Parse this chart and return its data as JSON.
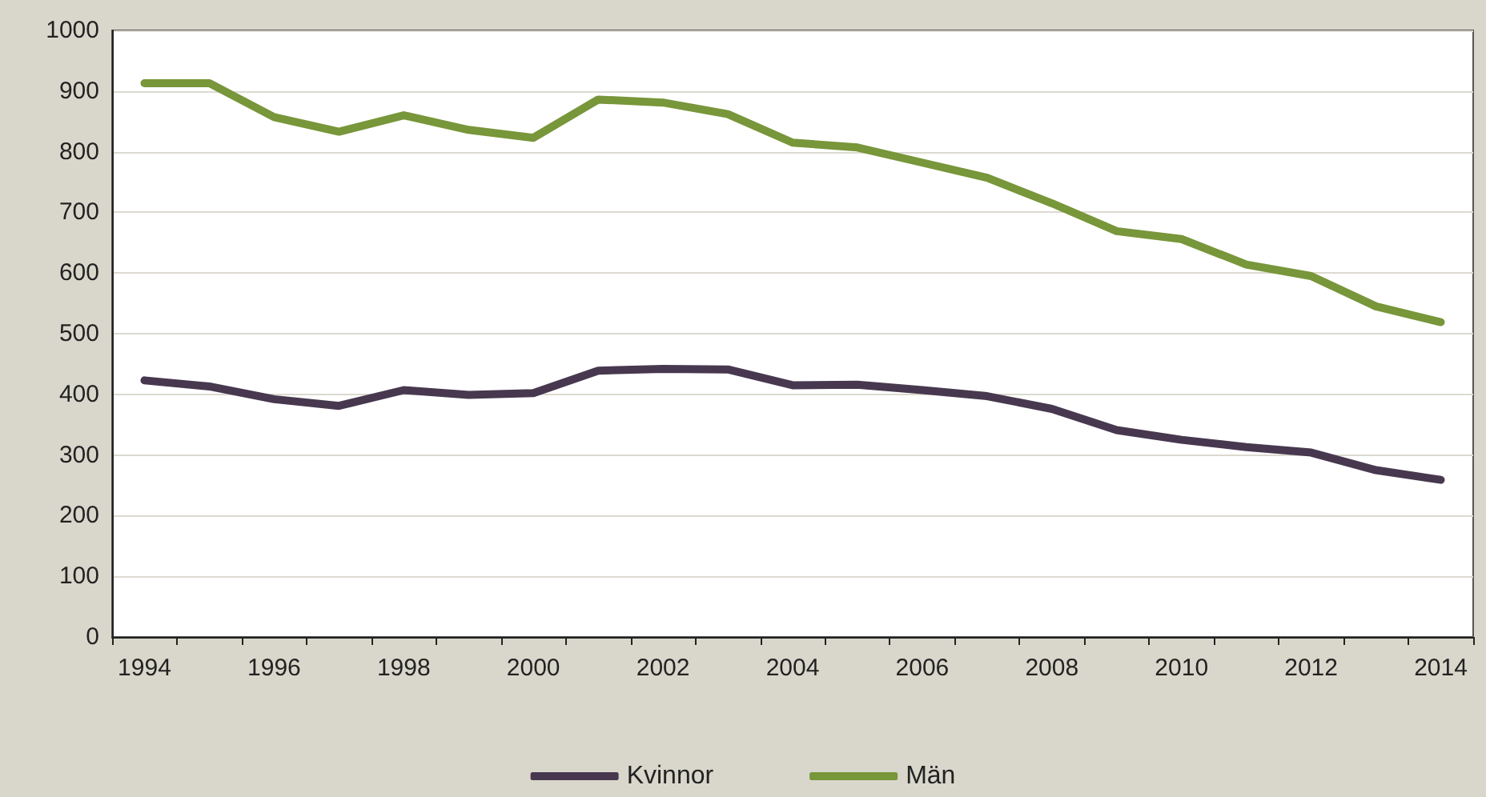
{
  "chart_data": {
    "type": "line",
    "categories": [
      "1994",
      null,
      "1996",
      null,
      "1998",
      null,
      "2000",
      null,
      "2002",
      null,
      "2004",
      null,
      "2006",
      null,
      "2008",
      null,
      "2010",
      null,
      "2012",
      null,
      "2014"
    ],
    "series": [
      {
        "name": "Kvinnor",
        "color": "#47384f",
        "values": [
          423,
          413,
          392,
          381,
          407,
          399,
          402,
          439,
          442,
          441,
          415,
          416,
          407,
          397,
          376,
          341,
          325,
          313,
          304,
          275,
          259
        ]
      },
      {
        "name": "Män",
        "color": "#78963a",
        "values": [
          913,
          913,
          857,
          833,
          860,
          836,
          823,
          886,
          881,
          862,
          815,
          807,
          782,
          757,
          715,
          669,
          656,
          614,
          595,
          545,
          519
        ]
      }
    ],
    "ylim": [
      0,
      1000
    ],
    "yticks": [
      0,
      100,
      200,
      300,
      400,
      500,
      600,
      700,
      800,
      900,
      1000
    ],
    "grid": "y",
    "legend": "bottom",
    "marker": "none",
    "line_style": "solid"
  }
}
